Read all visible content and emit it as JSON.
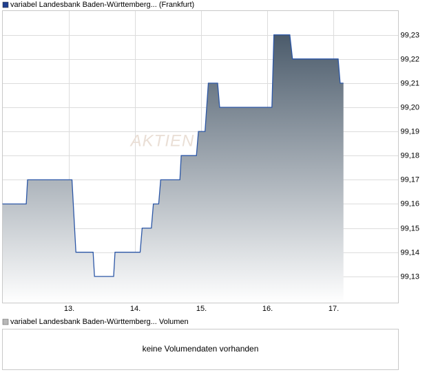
{
  "chart_data": [
    {
      "type": "line",
      "legend_label": "variabel Landesbank Baden-Württemberg... (Frankfurt)",
      "watermark": "AKTIEN",
      "legend_color": "#1f3f8f",
      "color": "#2b56a6",
      "fill_top": "#4b5b6b",
      "grid": true,
      "x": [
        12.0,
        12.36,
        12.38,
        13.05,
        13.11,
        13.37,
        13.39,
        13.68,
        13.7,
        14.08,
        14.11,
        14.25,
        14.28,
        14.36,
        14.39,
        14.68,
        14.7,
        14.93,
        14.96,
        15.06,
        15.11,
        15.25,
        15.28,
        16.07,
        16.1,
        16.34,
        16.38,
        17.07,
        17.1,
        17.15
      ],
      "values": [
        99.16,
        99.16,
        99.17,
        99.17,
        99.14,
        99.14,
        99.13,
        99.13,
        99.14,
        99.14,
        99.15,
        99.15,
        99.16,
        99.16,
        99.17,
        99.17,
        99.18,
        99.18,
        99.19,
        99.19,
        99.21,
        99.21,
        99.2,
        99.2,
        99.23,
        99.23,
        99.22,
        99.22,
        99.21,
        99.21
      ],
      "xlim": [
        12.0,
        17.98
      ],
      "xticks": [
        {
          "value": 13,
          "label": "13."
        },
        {
          "value": 14,
          "label": "14."
        },
        {
          "value": 15,
          "label": "15."
        },
        {
          "value": 16,
          "label": "16."
        },
        {
          "value": 17,
          "label": "17."
        }
      ],
      "ylim": [
        99.119,
        99.24
      ],
      "yticks": [
        {
          "value": 99.13,
          "label": "99,13"
        },
        {
          "value": 99.14,
          "label": "99,14"
        },
        {
          "value": 99.15,
          "label": "99,15"
        },
        {
          "value": 99.16,
          "label": "99,16"
        },
        {
          "value": 99.17,
          "label": "99,17"
        },
        {
          "value": 99.18,
          "label": "99,18"
        },
        {
          "value": 99.19,
          "label": "99,19"
        },
        {
          "value": 99.2,
          "label": "99,20"
        },
        {
          "value": 99.21,
          "label": "99,21"
        },
        {
          "value": 99.22,
          "label": "99,22"
        },
        {
          "value": 99.23,
          "label": "99,23"
        }
      ]
    },
    {
      "type": "empty",
      "legend_label": "variabel Landesbank Baden-Württemberg... Volumen",
      "legend_color": "#b8b8b8",
      "message": "keine Volumendaten vorhanden"
    }
  ]
}
